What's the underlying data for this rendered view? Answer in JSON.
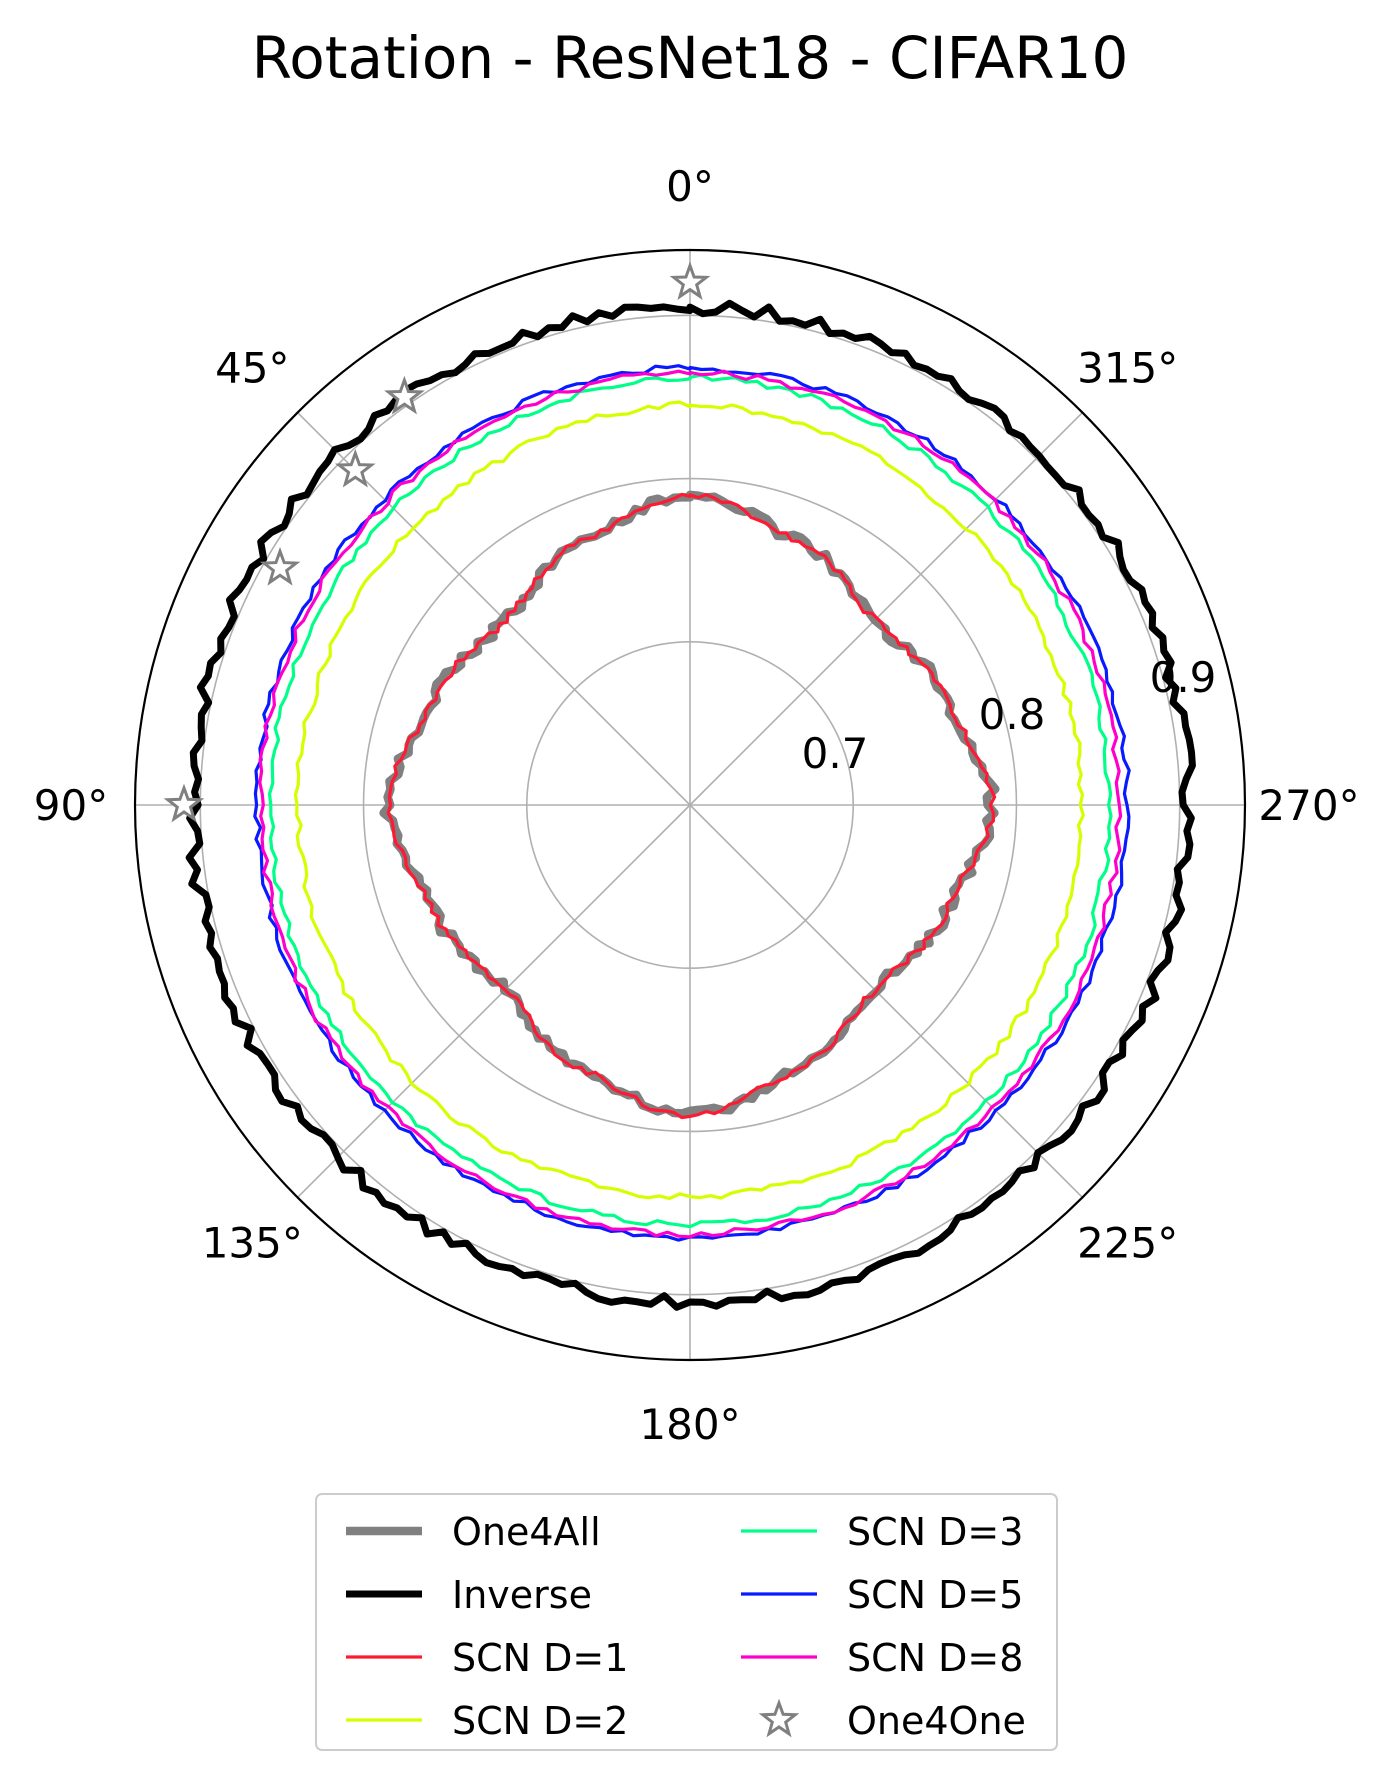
{
  "chart_data": {
    "type": "polar-line",
    "title": "Rotation - ResNet18 - CIFAR10",
    "theta_direction": "clockwise from top, labels counter-clockwise",
    "theta_ticks": [
      {
        "deg": 0,
        "label": "0°"
      },
      {
        "deg": 45,
        "label": "45°"
      },
      {
        "deg": 90,
        "label": "90°"
      },
      {
        "deg": 135,
        "label": "135°"
      },
      {
        "deg": 180,
        "label": "180°"
      },
      {
        "deg": 225,
        "label": "225°"
      },
      {
        "deg": 270,
        "label": "270°"
      },
      {
        "deg": 315,
        "label": "315°"
      }
    ],
    "r_range": [
      0.6,
      0.94
    ],
    "r_ticks": [
      {
        "value": 0.7,
        "label": "0.7"
      },
      {
        "value": 0.8,
        "label": "0.8"
      },
      {
        "value": 0.9,
        "label": "0.9"
      }
    ],
    "series": [
      {
        "name": "One4All",
        "color": "#808080",
        "width": 8.5,
        "style": "line",
        "anchors": [
          [
            0,
            0.79
          ],
          [
            22,
            0.775
          ],
          [
            45,
            0.76
          ],
          [
            68,
            0.77
          ],
          [
            90,
            0.785
          ],
          [
            112,
            0.77
          ],
          [
            135,
            0.76
          ],
          [
            158,
            0.775
          ],
          [
            180,
            0.79
          ],
          [
            202,
            0.775
          ],
          [
            225,
            0.76
          ],
          [
            248,
            0.77
          ],
          [
            270,
            0.785
          ],
          [
            292,
            0.77
          ],
          [
            315,
            0.76
          ],
          [
            338,
            0.775
          ],
          [
            360,
            0.79
          ]
        ],
        "noise": 0.003,
        "seed": 11
      },
      {
        "name": "Inverse",
        "color": "#000000",
        "width": 7,
        "style": "line",
        "anchors": [
          [
            0,
            0.905
          ],
          [
            45,
            0.905
          ],
          [
            90,
            0.905
          ],
          [
            135,
            0.905
          ],
          [
            180,
            0.905
          ],
          [
            225,
            0.905
          ],
          [
            270,
            0.905
          ],
          [
            315,
            0.905
          ],
          [
            360,
            0.905
          ]
        ],
        "noise": 0.004,
        "seed": 23
      },
      {
        "name": "SCN D=1",
        "color": "#ff1a33",
        "width": 3.2,
        "style": "line",
        "anchors": [
          [
            0,
            0.79
          ],
          [
            22,
            0.775
          ],
          [
            45,
            0.76
          ],
          [
            68,
            0.77
          ],
          [
            90,
            0.785
          ],
          [
            112,
            0.77
          ],
          [
            135,
            0.76
          ],
          [
            158,
            0.775
          ],
          [
            180,
            0.79
          ],
          [
            202,
            0.775
          ],
          [
            225,
            0.76
          ],
          [
            248,
            0.77
          ],
          [
            270,
            0.785
          ],
          [
            292,
            0.77
          ],
          [
            315,
            0.76
          ],
          [
            338,
            0.775
          ],
          [
            360,
            0.79
          ]
        ],
        "noise": 0.002,
        "seed": 37
      },
      {
        "name": "SCN D=2",
        "color": "#d4ff00",
        "width": 3.2,
        "style": "line",
        "anchors": [
          [
            0,
            0.845
          ],
          [
            45,
            0.84
          ],
          [
            90,
            0.84
          ],
          [
            135,
            0.84
          ],
          [
            180,
            0.84
          ],
          [
            225,
            0.84
          ],
          [
            270,
            0.84
          ],
          [
            315,
            0.84
          ],
          [
            360,
            0.845
          ]
        ],
        "noise": 0.002,
        "seed": 41
      },
      {
        "name": "SCN D=3",
        "color": "#00ff88",
        "width": 3.2,
        "style": "line",
        "anchors": [
          [
            0,
            0.862
          ],
          [
            45,
            0.857
          ],
          [
            90,
            0.857
          ],
          [
            135,
            0.857
          ],
          [
            180,
            0.857
          ],
          [
            225,
            0.857
          ],
          [
            270,
            0.857
          ],
          [
            315,
            0.857
          ],
          [
            360,
            0.862
          ]
        ],
        "noise": 0.002,
        "seed": 53
      },
      {
        "name": "SCN D=5",
        "color": "#0a1aff",
        "width": 3.2,
        "style": "line",
        "anchors": [
          [
            0,
            0.868
          ],
          [
            45,
            0.865
          ],
          [
            90,
            0.865
          ],
          [
            135,
            0.865
          ],
          [
            180,
            0.865
          ],
          [
            225,
            0.865
          ],
          [
            270,
            0.868
          ],
          [
            315,
            0.865
          ],
          [
            360,
            0.868
          ]
        ],
        "noise": 0.002,
        "seed": 61
      },
      {
        "name": "SCN D=8",
        "color": "#ff00cc",
        "width": 3.2,
        "style": "line",
        "anchors": [
          [
            0,
            0.865
          ],
          [
            45,
            0.863
          ],
          [
            90,
            0.863
          ],
          [
            135,
            0.863
          ],
          [
            180,
            0.863
          ],
          [
            225,
            0.863
          ],
          [
            270,
            0.863
          ],
          [
            315,
            0.863
          ],
          [
            360,
            0.865
          ]
        ],
        "noise": 0.002,
        "seed": 71
      },
      {
        "name": "One4One",
        "color": "#808080",
        "style": "star-markers",
        "points": [
          [
            0,
            0.92
          ],
          [
            35,
            0.905
          ],
          [
            45,
            0.89
          ],
          [
            60,
            0.89
          ],
          [
            90,
            0.91
          ]
        ]
      }
    ],
    "legend": {
      "placement": "bottom-center",
      "columns": 2,
      "entries": [
        "One4All",
        "Inverse",
        "SCN D=1",
        "SCN D=2",
        "SCN D=3",
        "SCN D=5",
        "SCN D=8",
        "One4One"
      ]
    }
  }
}
